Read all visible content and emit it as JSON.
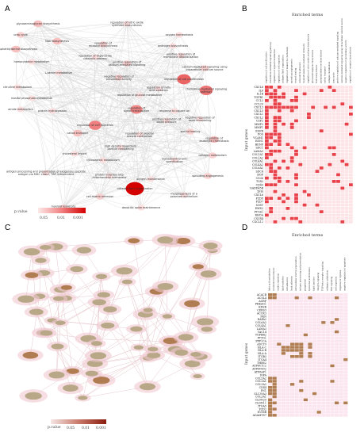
{
  "panels": {
    "A": {
      "letter": "A",
      "legend": {
        "title": "p.value",
        "ticks": [
          "0.05",
          "0.01",
          "0.001"
        ]
      },
      "nodes": [
        {
          "label": "glycosaminoglycan biosynthesis",
          "p": 0.02
        },
        {
          "label": "regulation of nitric-oxide synthase biosynthesis",
          "p": 0.04
        },
        {
          "label": "oxygen homeostasis",
          "p": 0.04
        },
        {
          "label": "urea cycle",
          "p": 0.03
        },
        {
          "label": "NAD biosynthesis",
          "p": 0.02
        },
        {
          "label": "regulation of receptor biosynthesis",
          "p": 0.03
        },
        {
          "label": "androgen biosynthesis",
          "p": 0.04
        },
        {
          "label": "phosphatidylserine biosynthesis",
          "p": 0.02
        },
        {
          "label": "regulation of triglyceride catabolic process",
          "p": 0.04
        },
        {
          "label": "positive regulation of membrane depolarization",
          "p": 0.04
        },
        {
          "label": "homocysteine metabolism",
          "p": 0.04
        },
        {
          "label": "positive regulation of calcium-mediated signaling",
          "p": 0.03
        },
        {
          "label": "calcium-mediated signaling using intracellular calcium source",
          "p": 0.03
        },
        {
          "label": "L-serine metabolism",
          "p": 0.04
        },
        {
          "label": "negative regulation of peroxidase activity",
          "p": 0.03
        },
        {
          "label": "regulation of cell proliferation",
          "p": 0.003
        },
        {
          "label": "citrulline metabolism",
          "p": 0.04
        },
        {
          "label": "regulation of fatty acid oxidation",
          "p": 0.04
        },
        {
          "label": "chemokine-mediated signaling pathway",
          "p": 0.004
        },
        {
          "label": "inositol phosphate metabolism",
          "p": 0.04
        },
        {
          "label": "regulation of glucose metabolism",
          "p": 0.04
        },
        {
          "label": "amide metabolism",
          "p": 0.04
        },
        {
          "label": "protein hydroxylation",
          "p": 0.04
        },
        {
          "label": "regulation of signal transduction",
          "p": 0.006
        },
        {
          "label": "response to copper ion",
          "p": 0.04
        },
        {
          "label": "negative regulation of bone remodeling",
          "p": 0.04
        },
        {
          "label": "positive regulation of blood pressure",
          "p": 0.04
        },
        {
          "label": "regulation of cell migration",
          "p": 0.005
        },
        {
          "label": "cation transport",
          "p": 0.02
        },
        {
          "label": "regulation of skeletal muscle contraction",
          "p": 0.04
        },
        {
          "label": "wound healing",
          "p": 0.03
        },
        {
          "label": "regulation of leukocyte chemotaxis",
          "p": 0.02
        },
        {
          "label": "high density lipoprotein particle remodeling",
          "p": 0.04
        },
        {
          "label": "collagen metabolism",
          "p": 0.03
        },
        {
          "label": "cholesterol import",
          "p": 0.04
        },
        {
          "label": "cytoplasmic metabolism",
          "p": 0.04
        },
        {
          "label": "dorsal/ventral axis specification",
          "p": 0.04
        },
        {
          "label": "antigen processing and presentation of exogenous peptide antigen via MHC class I, TAP-independent",
          "p": 0.04
        },
        {
          "label": "protein insertion into mitochondrial membrane",
          "p": 0.04
        },
        {
          "label": "sprouting angiogenesis",
          "p": 0.03
        },
        {
          "label": "oxygen maintenance",
          "p": 0.04
        },
        {
          "label": "collagen fibril organization",
          "p": 0.0005
        },
        {
          "label": "cell-matrix adhesion",
          "p": 0.03
        },
        {
          "label": "morphogenesis of a polarized epithelium",
          "p": 0.04
        },
        {
          "label": "myeloid leukocyte mediated immunity",
          "p": 0.03
        },
        {
          "label": "dendritic spine maintenance",
          "p": 0.04
        }
      ]
    },
    "B": {
      "letter": "B",
      "title": "Enriched terms",
      "y_label": "Input genes",
      "genes": [
        "CXCL8",
        "IL6",
        "IL1B",
        "TGFB1",
        "CCL2",
        "CCL20",
        "CXCL3",
        "CXCL5",
        "CXCL1",
        "CXCL2",
        "CSF2",
        "MMP3",
        "MMP1",
        "EGFR",
        "FOS",
        "VCAM1",
        "EDN1",
        "BDNF",
        "SDC1",
        "LAMA3",
        "COL1A1",
        "COL1A2",
        "COL4A1",
        "COL4A2",
        "COL6A1",
        "SDC4",
        "HGF",
        "CD36",
        "TLR2",
        "CD40",
        "GADD45B",
        "TFPI",
        "CXCL6",
        "FZD8",
        "FZD7",
        "SOST",
        "EMX2",
        "PTGS1",
        "RHOA",
        "CXCR4",
        "CXCL12"
      ],
      "terms": [
        "regulation of cell proliferation",
        "chemokine-mediated signaling pathway",
        "regulation of signal transduction",
        "regulation of cell migration",
        "collagen fibril organization",
        "regulation of leukocyte chemotaxis",
        "sprouting angiogenesis",
        "wound healing",
        "cell-matrix adhesion",
        "myeloid leukocyte mediated immunity",
        "regulation of nitric-oxide synthase biosynthesis",
        "glycosaminoglycan biosynthesis",
        "NAD biosynthesis",
        "phosphatidylserine biosynthesis",
        "cation transport",
        "collagen metabolism",
        "urea cycle",
        "positive regulation of calcium-mediated signaling",
        "calcium-mediated signaling using intracellular calcium source",
        "negative regulation of peroxidase activity",
        "regulation of receptor biosynthesis"
      ]
    },
    "C": {
      "letter": "C",
      "legend": {
        "title": "p.value",
        "ticks": [
          "0.05",
          "0.01",
          "0.001"
        ]
      }
    },
    "D": {
      "letter": "D",
      "title": "Enriched terms",
      "y_label": "Input genes",
      "genes": [
        "ACACB",
        "ACSL4",
        "AGRP",
        "PRKAG1",
        "KDSR",
        "CERS3",
        "ACOX3",
        "FKN",
        "RAPA2",
        "COL6A2",
        "COL4A1",
        "LAMA3",
        "VAC14",
        "TGFBR2",
        "PTTG1",
        "PPP1CA",
        "ADCY9",
        "HLA-C",
        "HLA-B",
        "HLA-A",
        "ITGB3",
        "ITGA4",
        "THBS2",
        "ATP6V1C2",
        "ATP6V0D2",
        "ATP6AP1",
        "IGFA",
        "COL5A2",
        "COL1A1",
        "COL1A2",
        "CD44",
        "FN1",
        "SLC39A3",
        "COL3A1",
        "CLDN20",
        "CLDN11",
        "ITGA5",
        "FZD2",
        "NUMB",
        "ADAMTS7"
      ],
      "terms": [
        "fatty acid metabolism",
        "ceramide biosynthesis",
        "insulin signaling",
        "lipid oxidation",
        "cell adhesion",
        "focal adhesion",
        "extracellular matrix organization",
        "antigen processing and presentation",
        "phagosome",
        "lysosomal acidification",
        "tight junction",
        "integrin signaling",
        "TGF-beta receptor signaling",
        "collagen catabolism",
        "Wnt signaling",
        "cell migration",
        "response to hypoxia",
        "negative regulation of apoptosis"
      ]
    }
  },
  "colors": {
    "node_low": "#fbe3e3",
    "node_mid": "#f08080",
    "node_high": "#e00000",
    "heat_on": "#e8414a",
    "heat_off": "#fde4e6",
    "heat_d_on": "#b07c51",
    "heat_d_off": "#fbe6f0",
    "network_c_node": "#9a8a6a"
  }
}
